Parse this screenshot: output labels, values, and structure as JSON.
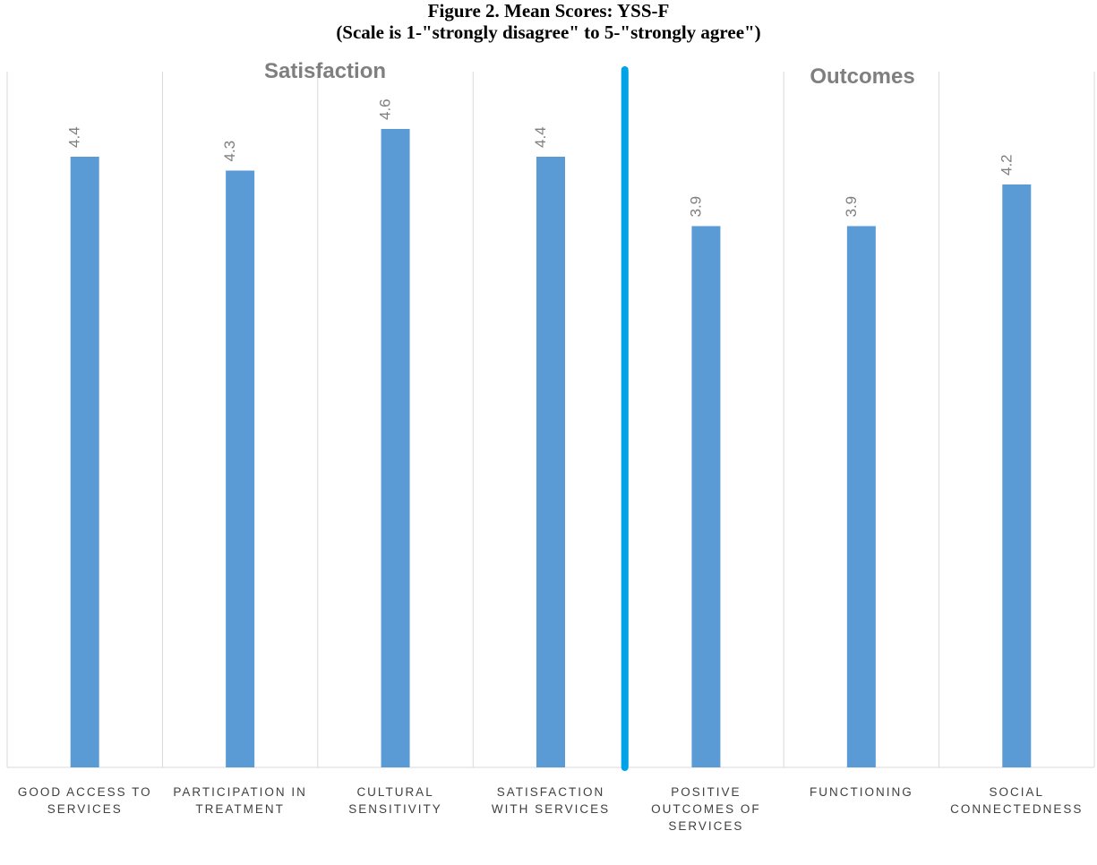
{
  "chart_data": {
    "type": "bar",
    "title": "Figure 2. Mean Scores: YSS-F",
    "subtitle": "(Scale is 1-\"strongly disagree\" to 5-\"strongly agree\")",
    "categories": [
      [
        "GOOD ACCESS TO",
        "SERVICES"
      ],
      [
        "PARTICIPATION IN",
        "TREATMENT"
      ],
      [
        "CULTURAL",
        "SENSITIVITY"
      ],
      [
        "SATISFACTION",
        "WITH SERVICES"
      ],
      [
        "POSITIVE",
        "OUTCOMES OF",
        "SERVICES"
      ],
      [
        "FUNCTIONING"
      ],
      [
        "SOCIAL",
        "CONNECTEDNESS"
      ]
    ],
    "values": [
      4.4,
      4.3,
      4.6,
      4.4,
      3.9,
      3.9,
      4.2
    ],
    "data_labels": [
      "4.4",
      "4.3",
      "4.6",
      "4.4",
      "3.9",
      "3.9",
      "4.2"
    ],
    "groups": [
      {
        "label": "Satisfaction",
        "from": 0,
        "to": 3
      },
      {
        "label": "Outcomes",
        "from": 4,
        "to": 6
      }
    ],
    "divider_after_category": 3,
    "xlabel": "",
    "ylabel": "",
    "ylim": [
      0,
      5
    ],
    "grid": "vertical-category-separators",
    "legend": "none",
    "colors": {
      "bar": "#5b9bd5",
      "divider": "#00a2e8",
      "gridline": "#d9d9d9",
      "data_label": "#7f7f7f",
      "category_label": "#404040",
      "group_label": "#7f7f7f"
    }
  }
}
